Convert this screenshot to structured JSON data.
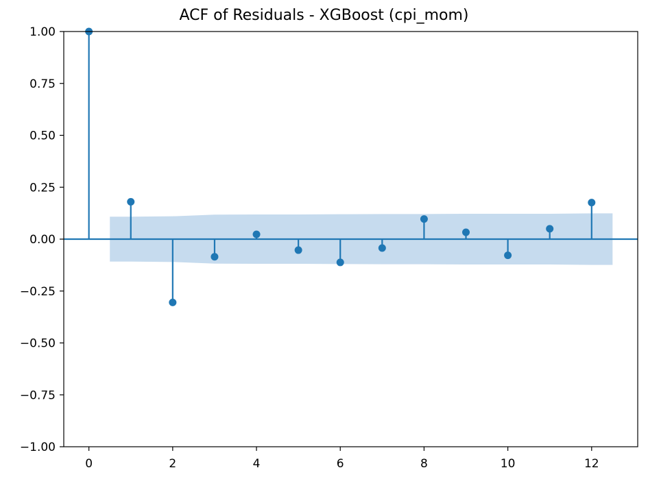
{
  "chart_data": {
    "type": "stem",
    "title": "ACF of Residuals - XGBoost (cpi_mom)",
    "xlabel": "",
    "ylabel": "",
    "xlim": [
      -0.6,
      13.1
    ],
    "ylim": [
      -1.0,
      1.0
    ],
    "x_ticks": [
      0,
      2,
      4,
      6,
      8,
      10,
      12
    ],
    "y_ticks": [
      -1.0,
      -0.75,
      -0.5,
      -0.25,
      0.0,
      0.25,
      0.5,
      0.75,
      1.0
    ],
    "y_tick_labels": [
      "−1.00",
      "−0.75",
      "−0.50",
      "−0.25",
      "0.00",
      "0.25",
      "0.50",
      "0.75",
      "1.00"
    ],
    "x_tick_labels": [
      "0",
      "2",
      "4",
      "6",
      "8",
      "10",
      "12"
    ],
    "lags": [
      0,
      1,
      2,
      3,
      4,
      5,
      6,
      7,
      8,
      9,
      10,
      11,
      12
    ],
    "acf": [
      1.0,
      0.18,
      -0.305,
      -0.085,
      0.023,
      -0.053,
      -0.112,
      -0.043,
      0.097,
      0.033,
      -0.078,
      0.05,
      0.176
    ],
    "confidence_band": {
      "x": [
        0.5,
        1,
        2,
        3,
        4,
        5,
        6,
        7,
        8,
        9,
        10,
        11,
        12,
        12.5
      ],
      "upper": [
        0.108,
        0.108,
        0.11,
        0.118,
        0.119,
        0.119,
        0.12,
        0.121,
        0.121,
        0.122,
        0.122,
        0.122,
        0.124,
        0.124
      ],
      "lower": [
        -0.108,
        -0.108,
        -0.11,
        -0.118,
        -0.119,
        -0.119,
        -0.12,
        -0.121,
        -0.121,
        -0.122,
        -0.122,
        -0.122,
        -0.124,
        -0.124
      ]
    },
    "colors": {
      "stem": "#1f77b4",
      "band": "#c6dbee",
      "axis": "#000000"
    },
    "grid": false
  }
}
